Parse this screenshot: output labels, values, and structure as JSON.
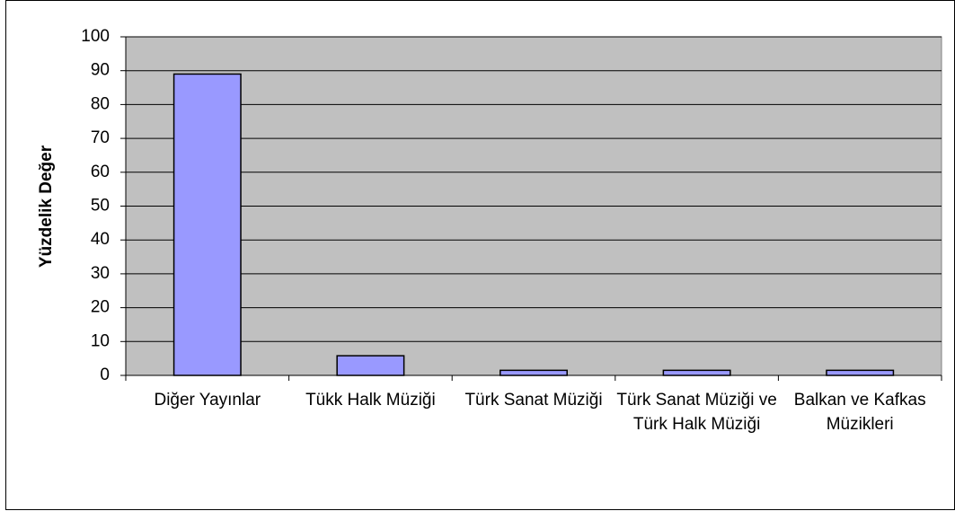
{
  "chart_data": {
    "type": "bar",
    "y_label": "Yüzdelik Değer",
    "categories": [
      "Diğer Yayınlar",
      "Tükk Halk Müziği",
      "Türk Sanat Müziği",
      "Türk Sanat Müziği ve Türk Halk Müziği",
      "Balkan ve Kafkas Müzikleri"
    ],
    "values": [
      89,
      5.8,
      1.5,
      1.5,
      1.5
    ],
    "color": "#9999ff",
    "ylim": [
      0,
      100
    ],
    "yticks": [
      0,
      10,
      20,
      30,
      40,
      50,
      60,
      70,
      80,
      90,
      100
    ],
    "grid": true
  }
}
